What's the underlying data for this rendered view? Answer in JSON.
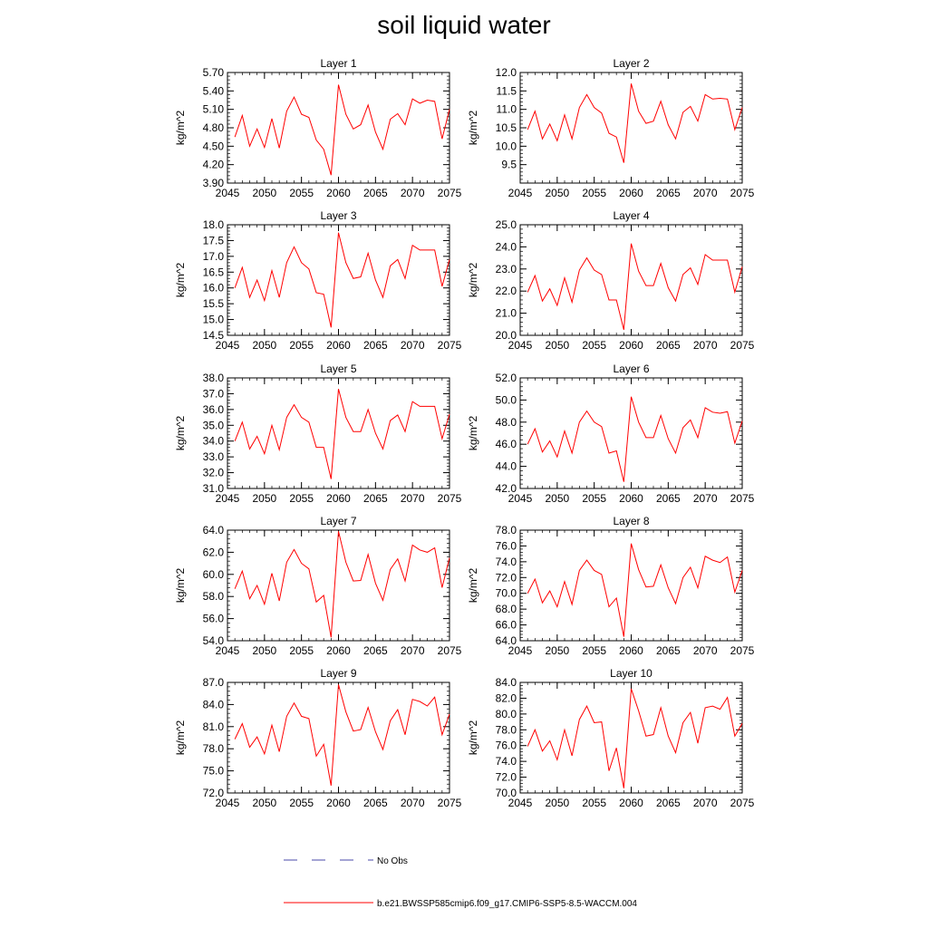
{
  "title": "soil liquid water",
  "colors": {
    "model_line": "#ff0000",
    "obs_line": "#4a4aa8"
  },
  "legend": [
    {
      "label": "No Obs",
      "style": "dashed",
      "color": "#4a4aa8"
    },
    {
      "label": "b.e21.BWSSP585cmip6.f09_g17.CMIP6-SSP5-8.5-WACCM.004",
      "style": "solid",
      "color": "#ff0000"
    }
  ],
  "chart_data": [
    {
      "type": "line",
      "title": "Layer 1",
      "ylabel": "kg/m^2",
      "xlim": [
        2045,
        2075
      ],
      "ylim": [
        3.9,
        5.7
      ],
      "xticks": [
        "2045",
        "2050",
        "2055",
        "2060",
        "2065",
        "2070",
        "2075"
      ],
      "yticks": [
        "3.90",
        "4.20",
        "4.50",
        "4.80",
        "5.10",
        "5.40",
        "5.70"
      ],
      "x": [
        2046,
        2047,
        2048,
        2049,
        2050,
        2051,
        2052,
        2053,
        2054,
        2055,
        2056,
        2057,
        2058,
        2059,
        2060,
        2061,
        2062,
        2063,
        2064,
        2065,
        2066,
        2067,
        2068,
        2069,
        2070,
        2071,
        2072,
        2073,
        2074,
        2075
      ],
      "series": [
        {
          "values": [
            4.65,
            5.0,
            4.5,
            4.78,
            4.48,
            4.95,
            4.47,
            5.07,
            5.3,
            5.02,
            4.97,
            4.6,
            4.45,
            4.03,
            5.5,
            5.02,
            4.78,
            4.85,
            5.17,
            4.73,
            4.45,
            4.94,
            5.03,
            4.85,
            5.27,
            5.2,
            5.25,
            5.23,
            4.62,
            5.1
          ]
        }
      ]
    },
    {
      "type": "line",
      "title": "Layer 2",
      "ylabel": "kg/m^2",
      "xlim": [
        2045,
        2075
      ],
      "ylim": [
        9.0,
        12.0
      ],
      "xticks": [
        "2045",
        "2050",
        "2055",
        "2060",
        "2065",
        "2070",
        "2075"
      ],
      "yticks": [
        "9.5",
        "10.0",
        "10.5",
        "11.0",
        "11.5",
        "12.0"
      ],
      "x": [
        2046,
        2047,
        2048,
        2049,
        2050,
        2051,
        2052,
        2053,
        2054,
        2055,
        2056,
        2057,
        2058,
        2059,
        2060,
        2061,
        2062,
        2063,
        2064,
        2065,
        2066,
        2067,
        2068,
        2069,
        2070,
        2071,
        2072,
        2073,
        2074,
        2075
      ],
      "series": [
        {
          "values": [
            10.45,
            10.95,
            10.2,
            10.6,
            10.15,
            10.85,
            10.2,
            11.05,
            11.4,
            11.05,
            10.9,
            10.35,
            10.25,
            9.55,
            11.7,
            10.95,
            10.62,
            10.68,
            11.22,
            10.58,
            10.2,
            10.92,
            11.08,
            10.68,
            11.4,
            11.28,
            11.3,
            11.28,
            10.45,
            11.05
          ]
        }
      ]
    },
    {
      "type": "line",
      "title": "Layer 3",
      "ylabel": "kg/m^2",
      "xlim": [
        2045,
        2075
      ],
      "ylim": [
        14.5,
        18.0
      ],
      "xticks": [
        "2045",
        "2050",
        "2055",
        "2060",
        "2065",
        "2070",
        "2075"
      ],
      "yticks": [
        "14.5",
        "15.0",
        "15.5",
        "16.0",
        "16.5",
        "17.0",
        "17.5",
        "18.0"
      ],
      "x": [
        2046,
        2047,
        2048,
        2049,
        2050,
        2051,
        2052,
        2053,
        2054,
        2055,
        2056,
        2057,
        2058,
        2059,
        2060,
        2061,
        2062,
        2063,
        2064,
        2065,
        2066,
        2067,
        2068,
        2069,
        2070,
        2071,
        2072,
        2073,
        2074,
        2075
      ],
      "series": [
        {
          "values": [
            16.0,
            16.65,
            15.7,
            16.25,
            15.6,
            16.55,
            15.7,
            16.8,
            17.3,
            16.8,
            16.6,
            15.85,
            15.8,
            14.75,
            17.75,
            16.8,
            16.3,
            16.35,
            17.1,
            16.25,
            15.7,
            16.7,
            16.9,
            16.3,
            17.35,
            17.2,
            17.2,
            17.2,
            16.05,
            16.9
          ]
        }
      ]
    },
    {
      "type": "line",
      "title": "Layer 4",
      "ylabel": "kg/m^2",
      "xlim": [
        2045,
        2075
      ],
      "ylim": [
        20.0,
        25.0
      ],
      "xticks": [
        "2045",
        "2050",
        "2055",
        "2060",
        "2065",
        "2070",
        "2075"
      ],
      "yticks": [
        "20.0",
        "21.0",
        "22.0",
        "23.0",
        "24.0",
        "25.0"
      ],
      "x": [
        2046,
        2047,
        2048,
        2049,
        2050,
        2051,
        2052,
        2053,
        2054,
        2055,
        2056,
        2057,
        2058,
        2059,
        2060,
        2061,
        2062,
        2063,
        2064,
        2065,
        2066,
        2067,
        2068,
        2069,
        2070,
        2071,
        2072,
        2073,
        2074,
        2075
      ],
      "series": [
        {
          "values": [
            21.95,
            22.7,
            21.55,
            22.1,
            21.35,
            22.6,
            21.5,
            22.95,
            23.5,
            22.95,
            22.75,
            21.6,
            21.6,
            20.25,
            24.15,
            22.9,
            22.25,
            22.25,
            23.25,
            22.15,
            21.55,
            22.75,
            23.05,
            22.3,
            23.65,
            23.4,
            23.4,
            23.4,
            21.95,
            23.1
          ]
        }
      ]
    },
    {
      "type": "line",
      "title": "Layer 5",
      "ylabel": "kg/m^2",
      "xlim": [
        2045,
        2075
      ],
      "ylim": [
        31.0,
        38.0
      ],
      "xticks": [
        "2045",
        "2050",
        "2055",
        "2060",
        "2065",
        "2070",
        "2075"
      ],
      "yticks": [
        "31.0",
        "32.0",
        "33.0",
        "34.0",
        "35.0",
        "36.0",
        "37.0",
        "38.0"
      ],
      "x": [
        2046,
        2047,
        2048,
        2049,
        2050,
        2051,
        2052,
        2053,
        2054,
        2055,
        2056,
        2057,
        2058,
        2059,
        2060,
        2061,
        2062,
        2063,
        2064,
        2065,
        2066,
        2067,
        2068,
        2069,
        2070,
        2071,
        2072,
        2073,
        2074,
        2075
      ],
      "series": [
        {
          "values": [
            34.0,
            35.2,
            33.5,
            34.3,
            33.2,
            35.0,
            33.45,
            35.5,
            36.3,
            35.5,
            35.2,
            33.6,
            33.6,
            31.6,
            37.3,
            35.5,
            34.6,
            34.6,
            36.0,
            34.5,
            33.5,
            35.3,
            35.65,
            34.6,
            36.5,
            36.2,
            36.2,
            36.2,
            34.15,
            35.7
          ]
        }
      ]
    },
    {
      "type": "line",
      "title": "Layer 6",
      "ylabel": "kg/m^2",
      "xlim": [
        2045,
        2075
      ],
      "ylim": [
        42.0,
        52.0
      ],
      "xticks": [
        "2045",
        "2050",
        "2055",
        "2060",
        "2065",
        "2070",
        "2075"
      ],
      "yticks": [
        "42.0",
        "44.0",
        "46.0",
        "48.0",
        "50.0",
        "52.0"
      ],
      "x": [
        2046,
        2047,
        2048,
        2049,
        2050,
        2051,
        2052,
        2053,
        2054,
        2055,
        2056,
        2057,
        2058,
        2059,
        2060,
        2061,
        2062,
        2063,
        2064,
        2065,
        2066,
        2067,
        2068,
        2069,
        2070,
        2071,
        2072,
        2073,
        2074,
        2075
      ],
      "series": [
        {
          "values": [
            46.0,
            47.4,
            45.3,
            46.3,
            44.85,
            47.2,
            45.2,
            48.0,
            49.0,
            48.0,
            47.6,
            45.2,
            45.4,
            42.6,
            50.3,
            48.0,
            46.6,
            46.6,
            48.6,
            46.5,
            45.2,
            47.5,
            48.2,
            46.6,
            49.3,
            48.9,
            48.8,
            48.95,
            46.1,
            48.1
          ]
        }
      ]
    },
    {
      "type": "line",
      "title": "Layer 7",
      "ylabel": "kg/m^2",
      "xlim": [
        2045,
        2075
      ],
      "ylim": [
        54.0,
        64.0
      ],
      "xticks": [
        "2045",
        "2050",
        "2055",
        "2060",
        "2065",
        "2070",
        "2075"
      ],
      "yticks": [
        "54.0",
        "56.0",
        "58.0",
        "60.0",
        "62.0",
        "64.0"
      ],
      "x": [
        2046,
        2047,
        2048,
        2049,
        2050,
        2051,
        2052,
        2053,
        2054,
        2055,
        2056,
        2057,
        2058,
        2059,
        2060,
        2061,
        2062,
        2063,
        2064,
        2065,
        2066,
        2067,
        2068,
        2069,
        2070,
        2071,
        2072,
        2073,
        2074,
        2075
      ],
      "series": [
        {
          "values": [
            58.7,
            60.3,
            57.8,
            59.0,
            57.3,
            60.1,
            57.6,
            61.1,
            62.25,
            61.0,
            60.5,
            57.5,
            58.1,
            54.3,
            63.9,
            61.1,
            59.4,
            59.45,
            61.8,
            59.2,
            57.65,
            60.45,
            61.4,
            59.4,
            62.65,
            62.2,
            62.0,
            62.4,
            58.8,
            61.5
          ]
        }
      ]
    },
    {
      "type": "line",
      "title": "Layer 8",
      "ylabel": "kg/m^2",
      "xlim": [
        2045,
        2075
      ],
      "ylim": [
        64.0,
        78.0
      ],
      "xticks": [
        "2045",
        "2050",
        "2055",
        "2060",
        "2065",
        "2070",
        "2075"
      ],
      "yticks": [
        "64.0",
        "66.0",
        "68.0",
        "70.0",
        "72.0",
        "74.0",
        "76.0",
        "78.0"
      ],
      "x": [
        2046,
        2047,
        2048,
        2049,
        2050,
        2051,
        2052,
        2053,
        2054,
        2055,
        2056,
        2057,
        2058,
        2059,
        2060,
        2061,
        2062,
        2063,
        2064,
        2065,
        2066,
        2067,
        2068,
        2069,
        2070,
        2071,
        2072,
        2073,
        2074,
        2075
      ],
      "series": [
        {
          "values": [
            70.0,
            71.8,
            68.8,
            70.3,
            68.3,
            71.5,
            68.6,
            72.9,
            74.2,
            72.9,
            72.4,
            68.3,
            69.4,
            64.5,
            76.3,
            73.0,
            70.8,
            70.9,
            73.6,
            70.7,
            68.7,
            72.0,
            73.3,
            70.7,
            74.7,
            74.2,
            73.9,
            74.6,
            70.15,
            72.9
          ]
        }
      ]
    },
    {
      "type": "line",
      "title": "Layer 9",
      "ylabel": "kg/m^2",
      "xlim": [
        2045,
        2075
      ],
      "ylim": [
        72.0,
        87.0
      ],
      "xticks": [
        "2045",
        "2050",
        "2055",
        "2060",
        "2065",
        "2070",
        "2075"
      ],
      "yticks": [
        "72.0",
        "75.0",
        "78.0",
        "81.0",
        "84.0",
        "87.0"
      ],
      "x": [
        2046,
        2047,
        2048,
        2049,
        2050,
        2051,
        2052,
        2053,
        2054,
        2055,
        2056,
        2057,
        2058,
        2059,
        2060,
        2061,
        2062,
        2063,
        2064,
        2065,
        2066,
        2067,
        2068,
        2069,
        2070,
        2071,
        2072,
        2073,
        2074,
        2075
      ],
      "series": [
        {
          "values": [
            79.3,
            81.4,
            78.2,
            79.6,
            77.3,
            81.2,
            77.6,
            82.4,
            84.2,
            82.4,
            82.1,
            77.0,
            78.6,
            73.0,
            86.7,
            83.0,
            80.4,
            80.6,
            83.6,
            80.3,
            77.9,
            81.8,
            83.3,
            79.9,
            84.7,
            84.4,
            83.8,
            85.0,
            79.9,
            82.7
          ]
        }
      ]
    },
    {
      "type": "line",
      "title": "Layer 10",
      "ylabel": "kg/m^2",
      "xlim": [
        2045,
        2075
      ],
      "ylim": [
        70.0,
        84.0
      ],
      "xticks": [
        "2045",
        "2050",
        "2055",
        "2060",
        "2065",
        "2070",
        "2075"
      ],
      "yticks": [
        "70.0",
        "72.0",
        "74.0",
        "76.0",
        "78.0",
        "80.0",
        "82.0",
        "84.0"
      ],
      "x": [
        2046,
        2047,
        2048,
        2049,
        2050,
        2051,
        2052,
        2053,
        2054,
        2055,
        2056,
        2057,
        2058,
        2059,
        2060,
        2061,
        2062,
        2063,
        2064,
        2065,
        2066,
        2067,
        2068,
        2069,
        2070,
        2071,
        2072,
        2073,
        2074,
        2075
      ],
      "series": [
        {
          "values": [
            75.9,
            78.0,
            75.3,
            76.6,
            74.2,
            78.0,
            74.7,
            79.3,
            81.0,
            78.9,
            79.0,
            72.8,
            75.7,
            70.6,
            83.2,
            80.4,
            77.2,
            77.4,
            80.8,
            77.2,
            75.1,
            78.9,
            80.2,
            76.3,
            80.8,
            81.0,
            80.6,
            82.1,
            77.2,
            78.8
          ]
        }
      ]
    }
  ]
}
